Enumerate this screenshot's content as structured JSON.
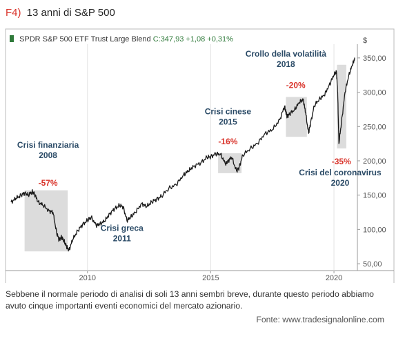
{
  "figure": {
    "number": "F4)",
    "title": "13 anni di S&P 500",
    "header": {
      "instrument": "SPDR S&P 500 ETF Trust Large Blend",
      "close": "C:347,93",
      "change": "+1,08 +0,31%",
      "marker_color": "#2f7a3a"
    },
    "caption": "Sebbene il normale periodo di analisi di soli 13 anni sembri breve, durante questo periodo abbiamo avuto cinque importanti eventi economici del mercato azionario.",
    "source": "Fonte: www.tradesignalonline.com"
  },
  "chart_data": {
    "type": "line",
    "y_unit_label": "$",
    "ylim": [
      40,
      370
    ],
    "xlim": [
      2006.9,
      2020.95
    ],
    "x_ticks": [
      2010,
      2015,
      2020
    ],
    "x_tick_labels": [
      "2010",
      "2015",
      "2020"
    ],
    "y_ticks": [
      50,
      100,
      150,
      200,
      250,
      300,
      350
    ],
    "y_tick_labels": [
      "50,00",
      "100,00",
      "150,00",
      "200,00",
      "250,00",
      "300,00",
      "350,00"
    ],
    "grid": "vertical",
    "line_color": "#1a1a1a",
    "shade_color": "#dcdcdc",
    "series": [
      {
        "x": [
          2006.9,
          2007.1,
          2007.3,
          2007.45,
          2007.6,
          2007.75,
          2007.85,
          2008.0,
          2008.2,
          2008.45,
          2008.6,
          2008.75,
          2008.85,
          2008.95,
          2009.05,
          2009.15,
          2009.25,
          2009.4,
          2009.6,
          2009.8,
          2010.0,
          2010.15,
          2010.35,
          2010.5,
          2010.7,
          2010.9,
          2011.1,
          2011.3,
          2011.45,
          2011.6,
          2011.75,
          2011.95,
          2012.2,
          2012.4,
          2012.6,
          2012.8,
          2013.0,
          2013.3,
          2013.6,
          2013.9,
          2014.1,
          2014.3,
          2014.6,
          2014.85,
          2015.0,
          2015.2,
          2015.4,
          2015.6,
          2015.7,
          2015.85,
          2016.05,
          2016.15,
          2016.3,
          2016.6,
          2016.9,
          2017.2,
          2017.5,
          2017.8,
          2018.0,
          2018.05,
          2018.1,
          2018.2,
          2018.4,
          2018.6,
          2018.75,
          2018.85,
          2018.97,
          2019.05,
          2019.2,
          2019.4,
          2019.6,
          2019.8,
          2020.0,
          2020.1,
          2020.15,
          2020.2,
          2020.3,
          2020.45,
          2020.6,
          2020.75,
          2020.85
        ],
        "y": [
          140,
          145,
          150,
          153,
          150,
          155,
          152,
          140,
          135,
          127,
          125,
          95,
          85,
          89,
          83,
          75,
          70,
          85,
          98,
          107,
          113,
          118,
          106,
          108,
          112,
          123,
          130,
          135,
          133,
          113,
          118,
          125,
          138,
          133,
          140,
          144,
          148,
          160,
          165,
          180,
          185,
          192,
          197,
          205,
          206,
          210,
          210,
          195,
          200,
          205,
          185,
          190,
          208,
          218,
          225,
          240,
          245,
          260,
          280,
          270,
          265,
          268,
          275,
          285,
          290,
          270,
          240,
          255,
          280,
          290,
          295,
          310,
          325,
          330,
          300,
          225,
          255,
          300,
          325,
          340,
          350
        ]
      }
    ],
    "shaded_regions": [
      {
        "x0": 2007.45,
        "x1": 2009.2,
        "y0": 68,
        "y1": 157
      },
      {
        "x0": 2015.3,
        "x1": 2016.25,
        "y0": 182,
        "y1": 211
      },
      {
        "x0": 2018.05,
        "x1": 2018.9,
        "y0": 235,
        "y1": 293
      },
      {
        "x0": 2020.12,
        "x1": 2020.5,
        "y0": 218,
        "y1": 340
      }
    ],
    "annotations": [
      {
        "kind": "event",
        "lines": [
          "Crisi finanziaria",
          "2008"
        ],
        "x": 2008.4,
        "y": 219
      },
      {
        "kind": "pct",
        "lines": [
          "-57%"
        ],
        "x": 2008.4,
        "y": 164
      },
      {
        "kind": "event",
        "lines": [
          "Crisi greca",
          "2011"
        ],
        "x": 2011.4,
        "y": 98
      },
      {
        "kind": "event",
        "lines": [
          "Crisi cinese",
          "2015"
        ],
        "x": 2015.7,
        "y": 268
      },
      {
        "kind": "pct",
        "lines": [
          "-16%"
        ],
        "x": 2015.7,
        "y": 224
      },
      {
        "kind": "event",
        "lines": [
          "Crollo della volatilità",
          "2018"
        ],
        "x": 2018.05,
        "y": 352
      },
      {
        "kind": "pct",
        "lines": [
          "-20%"
        ],
        "x": 2018.45,
        "y": 306
      },
      {
        "kind": "pct",
        "lines": [
          "-35%"
        ],
        "x": 2020.3,
        "y": 195
      },
      {
        "kind": "event",
        "lines": [
          "Crisi del coronavirus",
          "2020"
        ],
        "x": 2020.25,
        "y": 179
      }
    ]
  }
}
